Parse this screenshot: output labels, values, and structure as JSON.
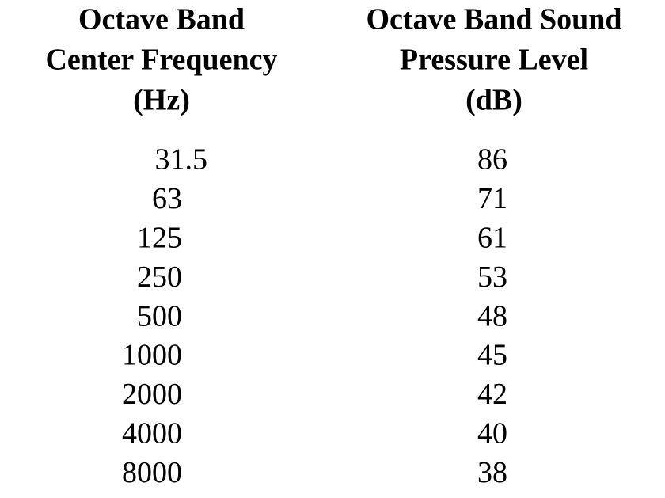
{
  "table": {
    "headers": [
      [
        "Octave Band",
        "Center Frequency",
        "(Hz)"
      ],
      [
        "Octave Band Sound",
        "Pressure Level",
        "(dB)"
      ]
    ],
    "rows": [
      [
        31.5,
        86
      ],
      [
        63,
        71
      ],
      [
        125,
        61
      ],
      [
        250,
        53
      ],
      [
        500,
        48
      ],
      [
        1000,
        45
      ],
      [
        2000,
        42
      ],
      [
        4000,
        40
      ],
      [
        8000,
        38
      ]
    ]
  }
}
